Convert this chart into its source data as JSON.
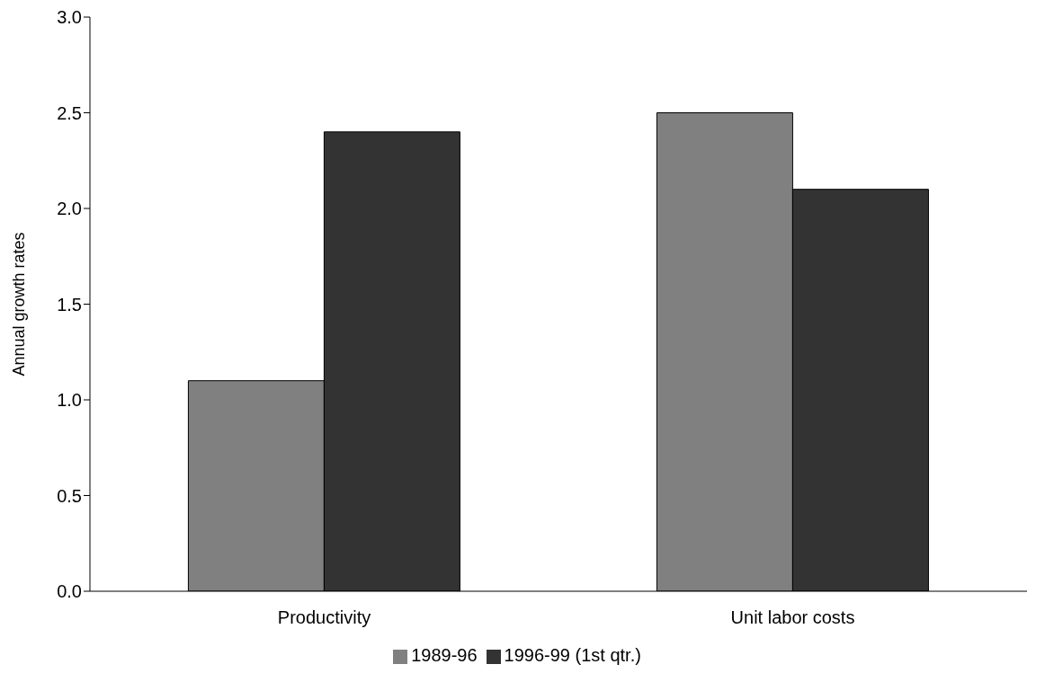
{
  "chart_data": {
    "type": "bar",
    "ylabel": "Annual growth rates",
    "categories": [
      "Productivity",
      "Unit labor costs"
    ],
    "series": [
      {
        "name": "1989-96",
        "color": "#808080",
        "values": [
          1.1,
          2.5
        ]
      },
      {
        "name": "1996-99 (1st qtr.)",
        "color": "#333333",
        "values": [
          2.4,
          2.1
        ]
      }
    ],
    "ylim": [
      0,
      3
    ],
    "yticks": [
      {
        "value": 0,
        "label": "0.0"
      },
      {
        "value": 0.5,
        "label": "0.5"
      },
      {
        "value": 1,
        "label": "1.0"
      },
      {
        "value": 1.5,
        "label": "1.5"
      },
      {
        "value": 2,
        "label": "2.0"
      },
      {
        "value": 2.5,
        "label": "2.5"
      },
      {
        "value": 3,
        "label": "3.0"
      }
    ],
    "grid": false,
    "legend": "bottom"
  }
}
